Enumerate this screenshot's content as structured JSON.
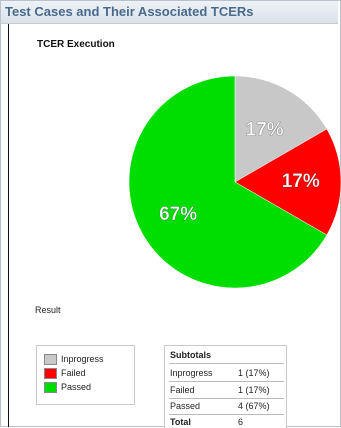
{
  "window": {
    "title": "Test Cases and Their Associated TCERs"
  },
  "chart_data": {
    "type": "pie",
    "title": "TCER Execution",
    "slices": [
      {
        "label": "Inprogress",
        "value": 1,
        "percent_label": "17%",
        "color": "#c8c8c8"
      },
      {
        "label": "Failed",
        "value": 1,
        "percent_label": "17%",
        "color": "#ff0000"
      },
      {
        "label": "Passed",
        "value": 4,
        "percent_label": "67%",
        "color": "#00dd00"
      }
    ]
  },
  "result_label": "Result",
  "legend": {
    "items": [
      {
        "label": "Inprogress",
        "color": "#c8c8c8"
      },
      {
        "label": "Failed",
        "color": "#ff0000"
      },
      {
        "label": "Passed",
        "color": "#00dd00"
      }
    ]
  },
  "subtotals": {
    "heading": "Subtotals",
    "rows": [
      {
        "label": "Inprogress",
        "value": "1 (17%)"
      },
      {
        "label": "Failed",
        "value": "1 (17%)"
      },
      {
        "label": "Passed",
        "value": "4 (67%)"
      }
    ],
    "total": {
      "label": "Total",
      "value": "6"
    }
  }
}
